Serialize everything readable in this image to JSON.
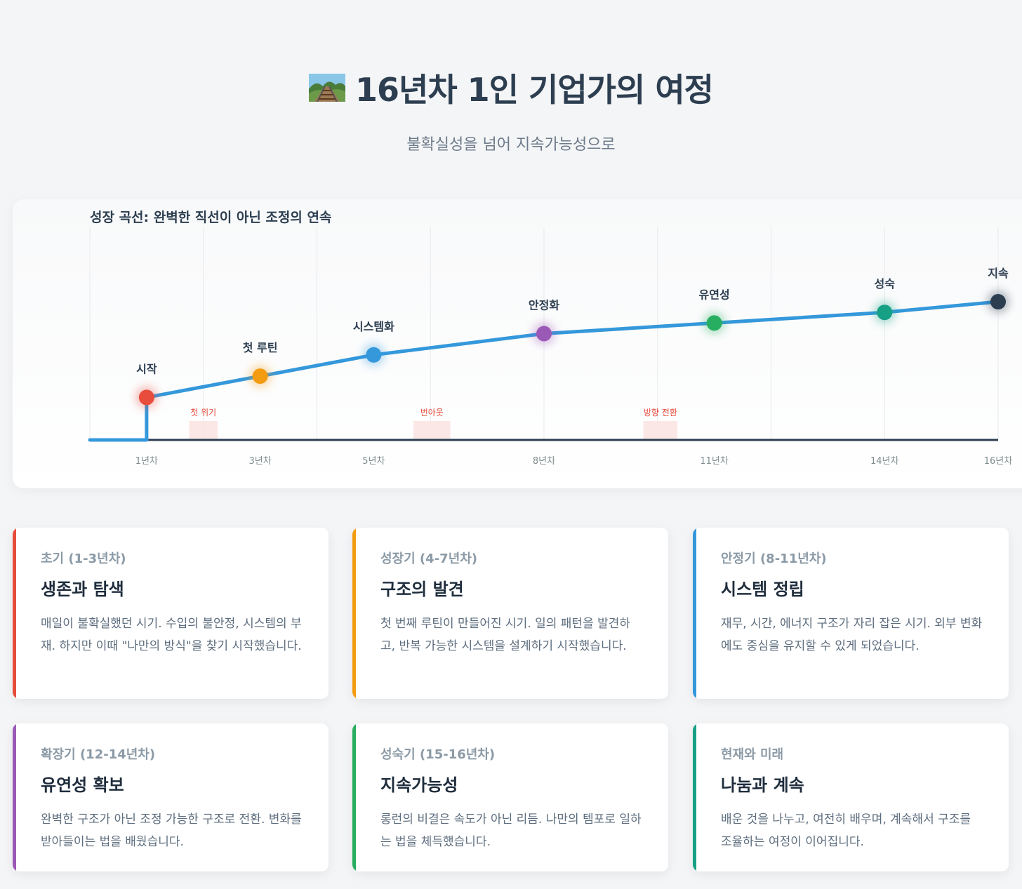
{
  "header": {
    "title": "16년차 1인 기업가의 여정",
    "subtitle": "불확실성을 넘어 지속가능성으로"
  },
  "chart_data": {
    "type": "line",
    "title": "성장 곡선: 완벽한 직선이 아닌 조정의 연속",
    "x_ticks": [
      "1년차",
      "3년차",
      "5년차",
      "8년차",
      "11년차",
      "14년차",
      "16년차"
    ],
    "x_tick_values": [
      1,
      3,
      5,
      8,
      11,
      14,
      16
    ],
    "xlim": [
      0,
      16
    ],
    "grid": true,
    "series": [
      {
        "points": [
          {
            "x": 0,
            "y": 0
          },
          {
            "x": 1,
            "y": 0
          },
          {
            "x": 1,
            "y": 20
          },
          {
            "x": 3,
            "y": 30
          },
          {
            "x": 5,
            "y": 40
          },
          {
            "x": 8,
            "y": 50
          },
          {
            "x": 11,
            "y": 55
          },
          {
            "x": 14,
            "y": 60
          },
          {
            "x": 16,
            "y": 65
          }
        ]
      }
    ],
    "milestones": [
      {
        "label": "시작",
        "x": 1,
        "y": 20,
        "color": "#e74c3c"
      },
      {
        "label": "첫 루틴",
        "x": 3,
        "y": 30,
        "color": "#f39c12"
      },
      {
        "label": "시스템화",
        "x": 5,
        "y": 40,
        "color": "#3498db"
      },
      {
        "label": "안정화",
        "x": 8,
        "y": 50,
        "color": "#9b59b6"
      },
      {
        "label": "유연성",
        "x": 11,
        "y": 55,
        "color": "#27ae60"
      },
      {
        "label": "성숙",
        "x": 14,
        "y": 60,
        "color": "#16a085"
      },
      {
        "label": "지속",
        "x": 16,
        "y": 65,
        "color": "#2c3e50"
      }
    ],
    "crises": [
      {
        "label": "첫 위기",
        "x_start": 1.75,
        "x_end": 2.25
      },
      {
        "label": "번아웃",
        "x_start": 5.7,
        "x_end": 6.35
      },
      {
        "label": "방향 전환",
        "x_start": 9.75,
        "x_end": 10.35
      }
    ],
    "colors": {
      "line": "#3498db",
      "axis": "#2c3e50"
    }
  },
  "cards": [
    {
      "period": "초기 (1-3년차)",
      "heading": "생존과 탐색",
      "body": "매일이 불확실했던 시기. 수입의 불안정, 시스템의 부재. 하지만 이때 \"나만의 방식\"을 찾기 시작했습니다.",
      "accent": "#e74c3c"
    },
    {
      "period": "성장기 (4-7년차)",
      "heading": "구조의 발견",
      "body": "첫 번째 루틴이 만들어진 시기. 일의 패턴을 발견하고, 반복 가능한 시스템을 설계하기 시작했습니다.",
      "accent": "#f39c12"
    },
    {
      "period": "안정기 (8-11년차)",
      "heading": "시스템 정립",
      "body": "재무, 시간, 에너지 구조가 자리 잡은 시기. 외부 변화에도 중심을 유지할 수 있게 되었습니다.",
      "accent": "#3498db"
    },
    {
      "period": "확장기 (12-14년차)",
      "heading": "유연성 확보",
      "body": "완벽한 구조가 아닌 조정 가능한 구조로 전환. 변화를 받아들이는 법을 배웠습니다.",
      "accent": "#9b59b6"
    },
    {
      "period": "성숙기 (15-16년차)",
      "heading": "지속가능성",
      "body": "롱런의 비결은 속도가 아닌 리듬. 나만의 템포로 일하는 법을 체득했습니다.",
      "accent": "#27ae60"
    },
    {
      "period": "현재와 미래",
      "heading": "나눔과 계속",
      "body": "배운 것을 나누고, 여전히 배우며, 계속해서 구조를 조율하는 여정이 이어집니다.",
      "accent": "#16a085"
    }
  ]
}
